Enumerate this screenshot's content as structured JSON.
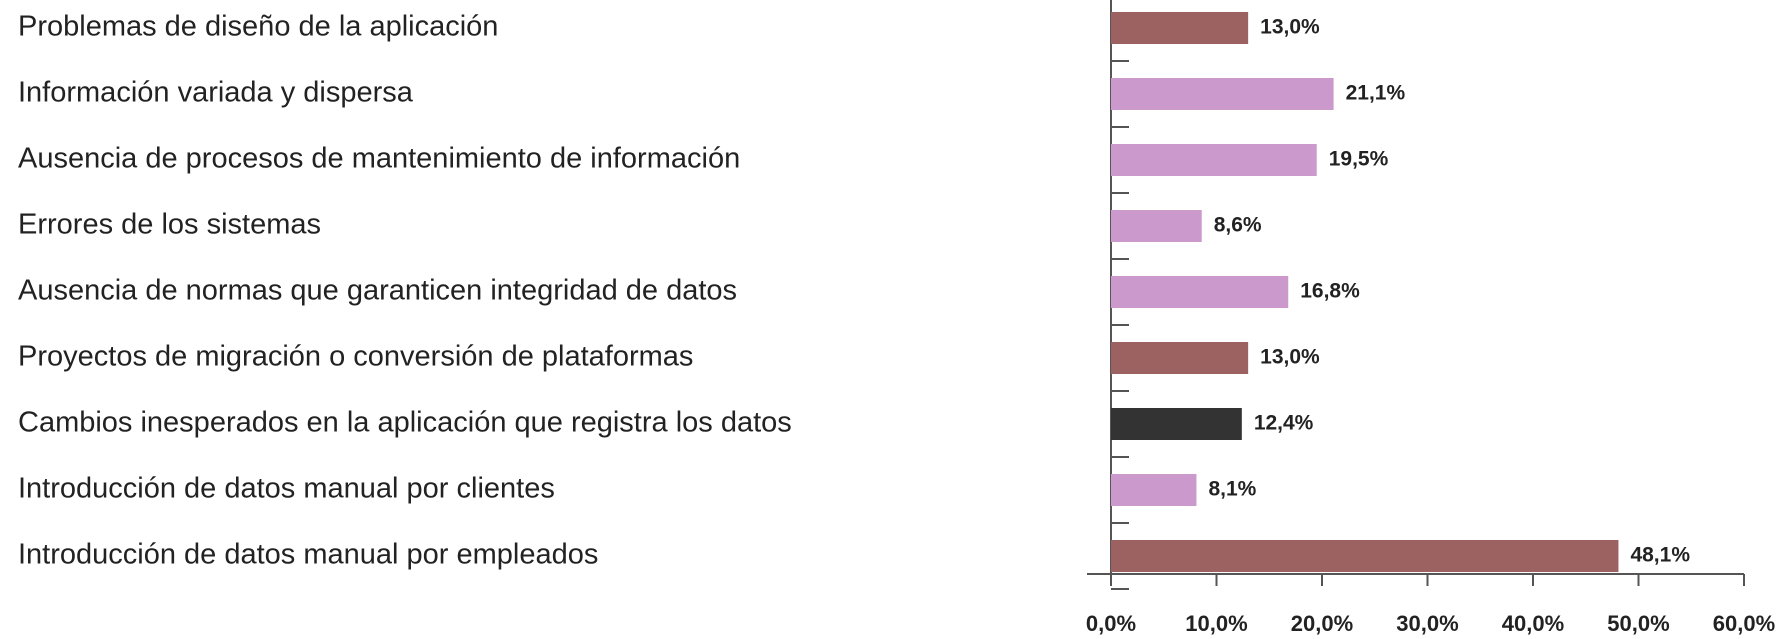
{
  "chart_data": {
    "type": "bar",
    "orientation": "horizontal",
    "categories": [
      "Problemas de diseño de la aplicación",
      "Información variada y dispersa",
      "Ausencia de procesos de mantenimiento de información",
      "Errores de los sistemas",
      "Ausencia de normas que garanticen integridad de datos",
      "Proyectos de migración o conversión de plataformas",
      "Cambios inesperados en la aplicación que registra los datos",
      "Introducción de datos manual por clientes",
      "Introducción de datos manual por empleados"
    ],
    "values": [
      13.0,
      21.1,
      19.5,
      8.6,
      16.8,
      13.0,
      12.4,
      8.1,
      48.1
    ],
    "value_labels": [
      "13,0%",
      "21,1%",
      "19,5%",
      "8,6%",
      "16,8%",
      "13,0%",
      "12,4%",
      "8,1%",
      "48,1%"
    ],
    "colors": [
      "#9c6262",
      "#cc99cc",
      "#cc99cc",
      "#cc99cc",
      "#cc99cc",
      "#9c6262",
      "#333333",
      "#cc99cc",
      "#9c6262"
    ],
    "xlim": [
      0,
      60
    ],
    "xticks": [
      {
        "value": 0,
        "label": "0,0%"
      },
      {
        "value": 10,
        "label": "10,0%"
      },
      {
        "value": 20,
        "label": "20,0%"
      },
      {
        "value": 30,
        "label": "30,0%"
      },
      {
        "value": 40,
        "label": "40,0%"
      },
      {
        "value": 50,
        "label": "50,0%"
      },
      {
        "value": 60,
        "label": "60,0%"
      }
    ],
    "grid": false
  }
}
